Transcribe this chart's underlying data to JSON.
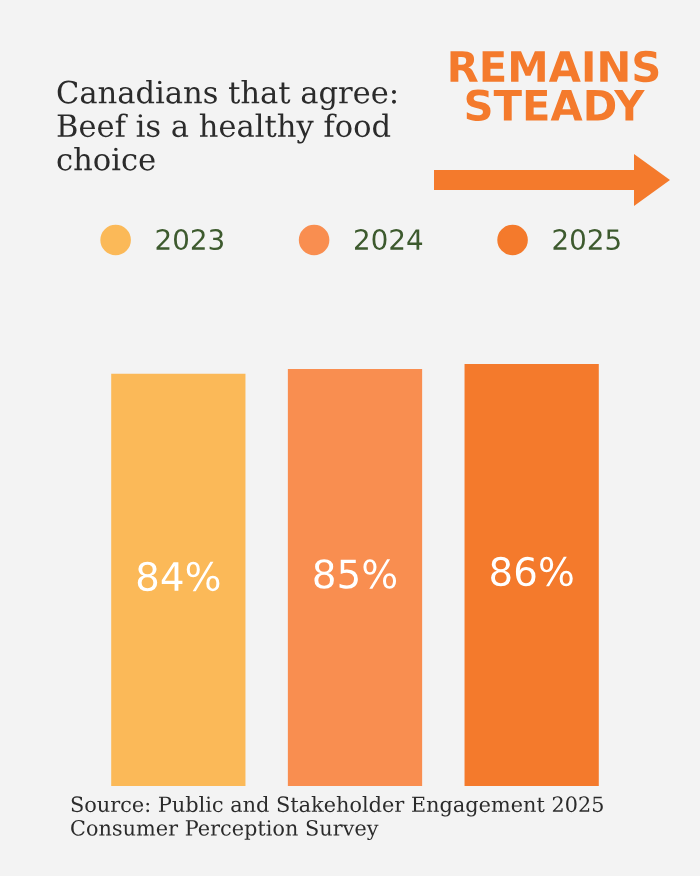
{
  "chart_data": {
    "type": "bar",
    "title": "Canadians that agree:\nBeef is a healthy food\nchoice",
    "subtitle": "REMAINS\nSTEADY",
    "categories": [
      null
    ],
    "series": [
      {
        "name": "2023",
        "color": "#fbb958",
        "values": [
          84
        ],
        "value_labels": [
          "84%"
        ]
      },
      {
        "name": "2024",
        "color": "#f98e50",
        "values": [
          85
        ],
        "value_labels": [
          "85%"
        ]
      },
      {
        "name": "2025",
        "color": "#f47a2c",
        "values": [
          86
        ],
        "value_labels": [
          "86%"
        ]
      }
    ],
    "legend": "top",
    "annotations": [
      "Source: Public and Stakeholder Engagement 2025\nConsumer Perception Survey"
    ]
  }
}
